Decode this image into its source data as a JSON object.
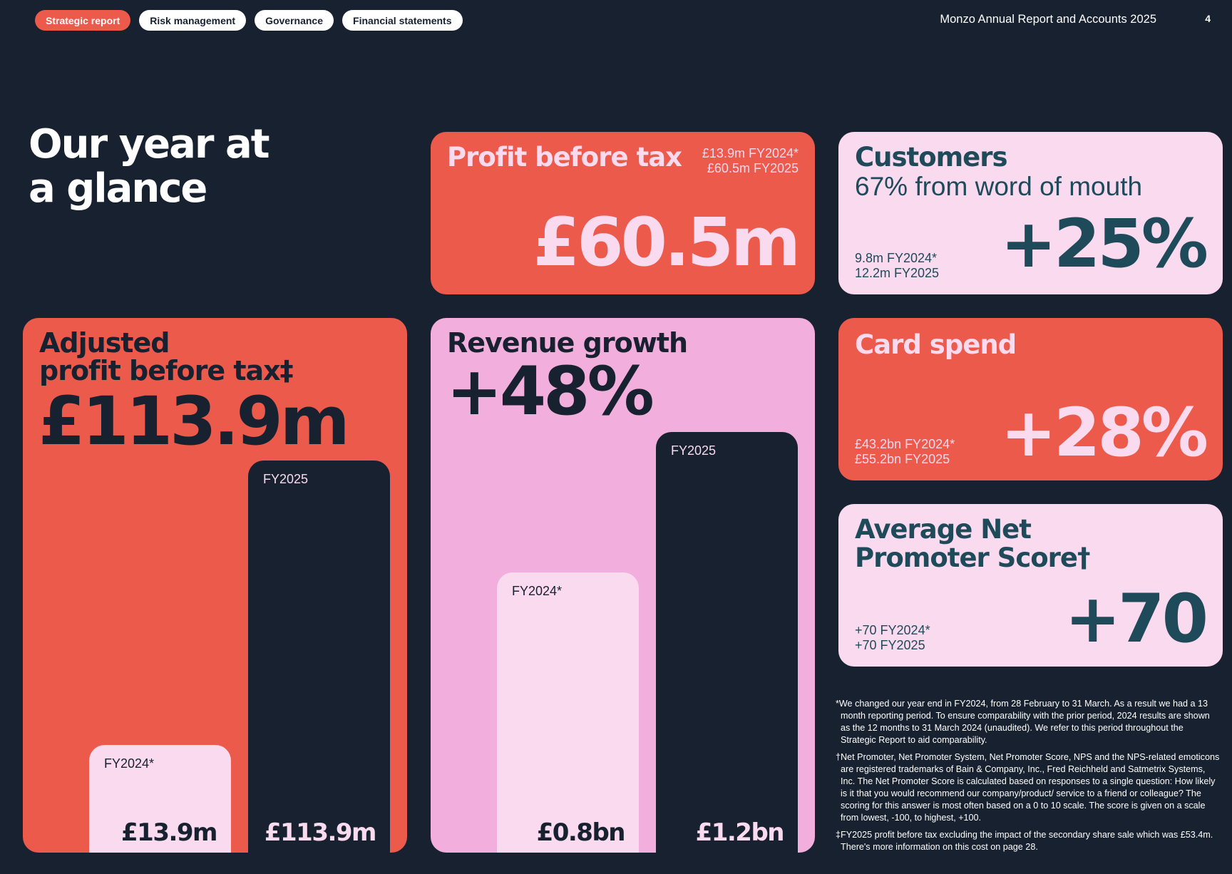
{
  "nav": {
    "tabs": [
      {
        "label": "Strategic report",
        "active": true
      },
      {
        "label": "Risk management",
        "active": false
      },
      {
        "label": "Governance",
        "active": false
      },
      {
        "label": "Financial statements",
        "active": false
      }
    ]
  },
  "header": {
    "report_title": "Monzo Annual Report and Accounts 2025",
    "page_number": "4"
  },
  "heading": {
    "line1": "Our year at",
    "line2": "a glance"
  },
  "profit_before_tax": {
    "title": "Profit before tax",
    "fy2024": "£13.9m FY2024*",
    "fy2025": "£60.5m FY2025",
    "value": "£60.5m"
  },
  "customers": {
    "title": "Customers",
    "subtitle": "67% from word of mouth",
    "fy2024": "9.8m FY2024*",
    "fy2025": "12.2m FY2025",
    "value": "+25%"
  },
  "adjusted_profit": {
    "title_line1": "Adjusted",
    "title_line2": "profit before tax‡",
    "value": "£113.9m",
    "bars": [
      {
        "label": "FY2024*",
        "value_label": "£13.9m",
        "value": 13.9
      },
      {
        "label": "FY2025",
        "value_label": "£113.9m",
        "value": 113.9
      }
    ]
  },
  "revenue_growth": {
    "title": "Revenue growth",
    "value": "+48%",
    "bars": [
      {
        "label": "FY2024*",
        "value_label": "£0.8bn",
        "value": 0.8
      },
      {
        "label": "FY2025",
        "value_label": "£1.2bn",
        "value": 1.2
      }
    ]
  },
  "card_spend": {
    "title": "Card spend",
    "fy2024": "£43.2bn FY2024*",
    "fy2025": "£55.2bn FY2025",
    "value": "+28%"
  },
  "nps": {
    "title_line1": "Average Net",
    "title_line2": "Promoter Score†",
    "fy2024": "+70 FY2024*",
    "fy2025": "+70 FY2025",
    "value": "+70"
  },
  "footnotes": [
    "*We changed our year end in FY2024, from 28 February to 31 March. As a result we had a 13 month reporting period. To ensure comparability with the prior period, 2024 results are shown as the 12 months to 31 March 2024 (unaudited). We refer to this period throughout the Strategic Report to aid comparability.",
    "†Net Promoter, Net Promoter System, Net Promoter Score, NPS and the NPS-related emoticons are registered trademarks of Bain & Company, Inc., Fred Reichheld and Satmetrix Systems, Inc. The Net Promoter Score is calculated based on responses to a single question: How likely is it that you would recommend our company/product/ service to a friend or colleague? The scoring for this answer is most often based on a 0 to 10 scale. The score is given on a scale from lowest, -100, to highest, +100.",
    "‡FY2025 profit before tax excluding the impact of the secondary share sale which was £53.4m. There's more information on this cost on page 28."
  ],
  "colors": {
    "background": "#172130",
    "coral": "#ec5a4b",
    "light_pink": "#f9daee",
    "pink": "#f2aedc",
    "teal": "#1e4a5a"
  }
}
